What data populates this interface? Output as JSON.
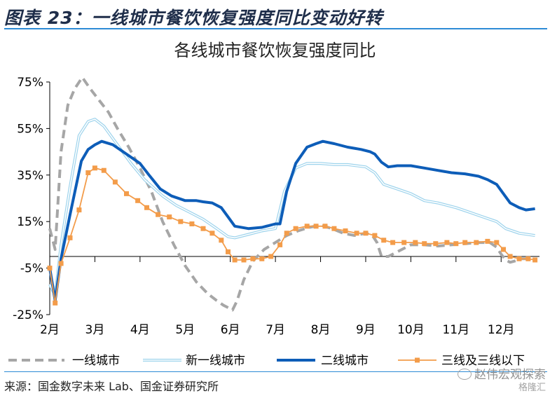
{
  "header": {
    "title": "图表 23：一线城市餐饮恢复强度同比变动好转"
  },
  "footer": {
    "source": "来源：国金数字未来 Lab、国金证券研究所"
  },
  "watermark": {
    "text": "赵伟宏观探索",
    "sub": "格隆汇"
  },
  "chart_data": {
    "type": "line",
    "title": "各线城市餐饮恢复强度同比",
    "ylim": [
      -25,
      75
    ],
    "yticks": [
      -25,
      -5,
      15,
      35,
      55,
      75
    ],
    "ytick_labels": [
      "-25%",
      "-5%",
      "15%",
      "35%",
      "55%",
      "75%"
    ],
    "xlim": [
      2.0,
      12.85
    ],
    "xticks": [
      2,
      3,
      4,
      5,
      6,
      7,
      8,
      9,
      10,
      11,
      12
    ],
    "xtick_labels": [
      "2月",
      "3月",
      "4月",
      "5月",
      "6月",
      "7月",
      "8月",
      "9月",
      "10月",
      "11月",
      "12月"
    ],
    "zero_line": 0,
    "legend_position": "bottom",
    "series": [
      {
        "name": "一线城市",
        "color": "#a6a6a6",
        "style": "dashed",
        "x": [
          2.0,
          2.12,
          2.25,
          2.4,
          2.55,
          2.72,
          2.9,
          3.1,
          3.3,
          3.5,
          3.75,
          4.0,
          4.25,
          4.5,
          4.75,
          5.0,
          5.25,
          5.5,
          5.7,
          5.85,
          5.95,
          6.05,
          6.15,
          6.3,
          6.5,
          6.75,
          7.0,
          7.25,
          7.5,
          7.75,
          8.0,
          8.25,
          8.5,
          8.75,
          9.0,
          9.15,
          9.25,
          9.35,
          9.5,
          9.7,
          10.0,
          10.3,
          10.6,
          10.9,
          11.2,
          11.5,
          11.75,
          11.9,
          12.0,
          12.1,
          12.2,
          12.3,
          12.45,
          12.6,
          12.75
        ],
        "y": [
          12,
          3,
          45,
          65,
          72,
          77,
          72,
          67,
          62,
          55,
          47,
          38,
          28,
          15,
          5,
          -4,
          -11,
          -16,
          -19,
          -21,
          -22,
          -23,
          -19,
          -10,
          -2,
          3,
          6,
          9,
          11,
          12.5,
          13.5,
          12,
          10,
          9,
          10,
          9,
          6,
          0,
          0,
          2,
          5,
          5,
          4.5,
          5,
          5.5,
          6,
          6,
          4,
          1,
          -1.5,
          -2.5,
          -2,
          -1,
          -1,
          -1.5
        ]
      },
      {
        "name": "新一线城市",
        "color": "#9dd3ec",
        "style": "double",
        "x": [
          2.0,
          2.12,
          2.25,
          2.45,
          2.65,
          2.85,
          3.0,
          3.2,
          3.5,
          3.8,
          4.1,
          4.5,
          4.8,
          5.1,
          5.4,
          5.7,
          5.95,
          6.1,
          6.4,
          6.7,
          7.0,
          7.2,
          7.45,
          7.7,
          8.0,
          8.3,
          8.6,
          9.0,
          9.2,
          9.4,
          9.7,
          10.0,
          10.3,
          10.6,
          11.0,
          11.3,
          11.6,
          11.9,
          12.1,
          12.4,
          12.75
        ],
        "y": [
          -12,
          -17,
          5,
          30,
          52,
          58,
          59,
          56,
          48,
          40,
          33,
          26,
          22,
          19,
          16,
          12,
          8.5,
          8,
          9.5,
          11,
          12,
          28,
          38,
          40,
          40,
          39.5,
          39.5,
          38.5,
          36,
          31,
          29,
          27,
          24,
          23,
          21,
          19,
          17,
          15,
          12,
          10,
          9
        ]
      },
      {
        "name": "二线城市",
        "color": "#0d5db8",
        "style": "solid-thick",
        "x": [
          2.0,
          2.12,
          2.25,
          2.45,
          2.7,
          2.85,
          3.0,
          3.15,
          3.4,
          3.7,
          4.0,
          4.2,
          4.45,
          4.7,
          5.0,
          5.25,
          5.4,
          5.6,
          5.8,
          5.95,
          6.1,
          6.4,
          6.7,
          7.0,
          7.1,
          7.25,
          7.45,
          7.7,
          7.9,
          8.05,
          8.3,
          8.6,
          8.9,
          9.1,
          9.2,
          9.35,
          9.5,
          9.7,
          10.0,
          10.3,
          10.6,
          10.9,
          11.2,
          11.5,
          11.7,
          11.8,
          11.9,
          12.05,
          12.2,
          12.4,
          12.55,
          12.75
        ],
        "y": [
          -5,
          -19,
          -1,
          18,
          41,
          46,
          48,
          49.5,
          48,
          44,
          40,
          35,
          29,
          26,
          24,
          24,
          23.5,
          23,
          21,
          17,
          13,
          12,
          12.5,
          14,
          14,
          28,
          40,
          47,
          48.5,
          49.5,
          48.5,
          47,
          46,
          45,
          44,
          40.5,
          38.5,
          39,
          39,
          38,
          37,
          36,
          35.5,
          34.5,
          33,
          32,
          31,
          27,
          23,
          21,
          20,
          20.5
        ]
      },
      {
        "name": "三线及三线以下",
        "color": "#f39c4a",
        "style": "square-markers",
        "x": [
          2.0,
          2.12,
          2.25,
          2.45,
          2.65,
          2.85,
          3.0,
          3.2,
          3.45,
          3.7,
          3.95,
          4.15,
          4.4,
          4.65,
          4.9,
          5.15,
          5.4,
          5.6,
          5.8,
          5.95,
          6.1,
          6.3,
          6.5,
          6.7,
          6.9,
          7.1,
          7.25,
          7.45,
          7.7,
          7.9,
          8.1,
          8.3,
          8.55,
          8.8,
          9.0,
          9.2,
          9.4,
          9.6,
          9.85,
          10.1,
          10.3,
          10.55,
          10.8,
          11.0,
          11.2,
          11.45,
          11.7,
          11.9,
          12.05,
          12.2,
          12.4,
          12.6,
          12.75
        ],
        "y": [
          -5,
          -20,
          -3,
          8,
          20,
          36,
          38,
          37,
          32,
          27,
          24,
          21,
          18,
          17,
          15,
          14,
          12,
          10,
          7,
          2,
          -1.5,
          -1.5,
          -1,
          -1,
          0,
          5,
          10,
          12,
          13,
          13,
          13,
          12,
          11,
          10,
          10,
          9,
          7,
          6,
          6,
          6,
          5.5,
          5.5,
          6,
          5.5,
          6,
          6,
          6.5,
          6,
          3,
          0,
          -1,
          -1,
          -1.5
        ]
      }
    ]
  }
}
